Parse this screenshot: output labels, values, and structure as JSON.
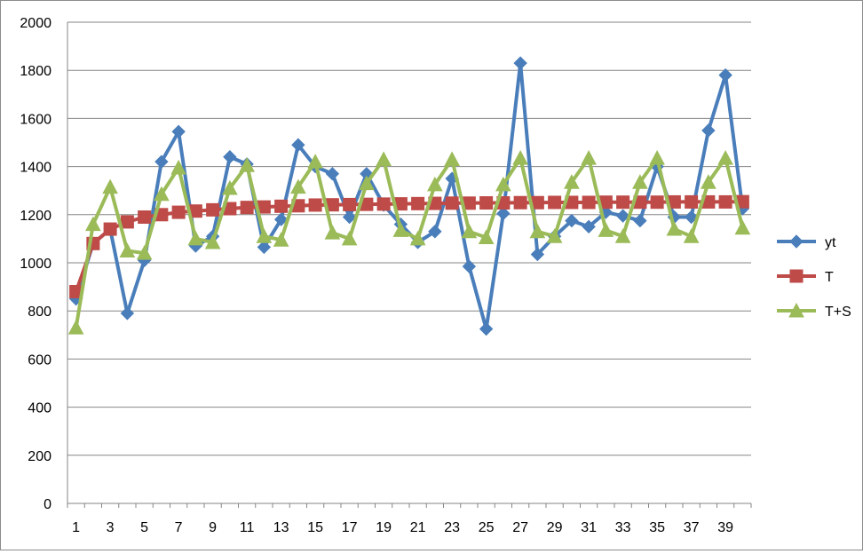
{
  "chart_data": {
    "type": "line",
    "title": "",
    "xlabel": "",
    "ylabel": "",
    "ylim": [
      0,
      2000
    ],
    "yticks": [
      0,
      200,
      400,
      600,
      800,
      1000,
      1200,
      1400,
      1600,
      1800,
      2000
    ],
    "x": [
      1,
      2,
      3,
      4,
      5,
      6,
      7,
      8,
      9,
      10,
      11,
      12,
      13,
      14,
      15,
      16,
      17,
      18,
      19,
      20,
      21,
      22,
      23,
      24,
      25,
      26,
      27,
      28,
      29,
      30,
      31,
      32,
      33,
      34,
      35,
      36,
      37,
      38,
      39,
      40
    ],
    "xtick_labels": [
      "1",
      "3",
      "5",
      "7",
      "9",
      "11",
      "13",
      "15",
      "17",
      "19",
      "21",
      "23",
      "25",
      "27",
      "29",
      "31",
      "33",
      "35",
      "37",
      "39"
    ],
    "grid": true,
    "legend_position": "right",
    "series": [
      {
        "name": "yt",
        "color": "#4a7ebb",
        "marker": "diamond",
        "values": [
          850,
          1080,
          1140,
          790,
          1010,
          1420,
          1545,
          1070,
          1110,
          1440,
          1410,
          1065,
          1180,
          1490,
          1400,
          1370,
          1190,
          1370,
          1240,
          1160,
          1085,
          1130,
          1350,
          985,
          725,
          1205,
          1830,
          1035,
          1110,
          1175,
          1150,
          1210,
          1195,
          1175,
          1400,
          1190,
          1190,
          1550,
          1780,
          1225
        ]
      },
      {
        "name": "T",
        "color": "#be4b48",
        "marker": "square",
        "values": [
          880,
          1080,
          1140,
          1170,
          1190,
          1200,
          1210,
          1215,
          1220,
          1225,
          1230,
          1232,
          1235,
          1237,
          1240,
          1241,
          1242,
          1243,
          1244,
          1245,
          1246,
          1247,
          1248,
          1248,
          1249,
          1249,
          1250,
          1250,
          1251,
          1251,
          1251,
          1252,
          1252,
          1252,
          1252,
          1253,
          1253,
          1253,
          1253,
          1254
        ]
      },
      {
        "name": "T+S",
        "color": "#9bbb59",
        "marker": "triangle",
        "values": [
          730,
          1160,
          1315,
          1050,
          1040,
          1285,
          1395,
          1100,
          1085,
          1310,
          1405,
          1110,
          1095,
          1315,
          1420,
          1125,
          1100,
          1330,
          1430,
          1135,
          1100,
          1325,
          1430,
          1130,
          1105,
          1325,
          1435,
          1130,
          1110,
          1335,
          1435,
          1135,
          1110,
          1335,
          1435,
          1140,
          1110,
          1335,
          1435,
          1145
        ]
      }
    ]
  }
}
